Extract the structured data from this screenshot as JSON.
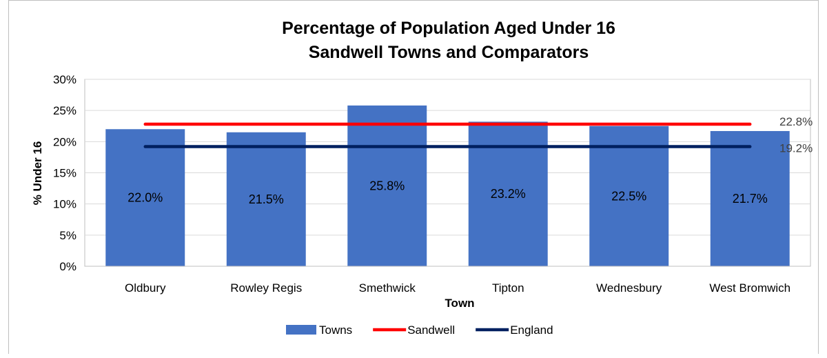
{
  "chart_data": {
    "type": "bar",
    "title": [
      "Percentage of Population Aged Under 16",
      "Sandwell Towns and Comparators"
    ],
    "xlabel": "Town",
    "ylabel": "% Under 16",
    "ylim": [
      0,
      30
    ],
    "yticks": [
      "0%",
      "5%",
      "10%",
      "15%",
      "20%",
      "25%",
      "30%"
    ],
    "ytick_values": [
      0,
      5,
      10,
      15,
      20,
      25,
      30
    ],
    "grid": true,
    "legend_position": "bottom",
    "categories": [
      "Oldbury",
      "Rowley Regis",
      "Smethwick",
      "Tipton",
      "Wednesbury",
      "West Bromwich"
    ],
    "series": [
      {
        "name": "Towns",
        "type": "bar",
        "color": "#4472C4",
        "values": [
          22.0,
          21.5,
          25.8,
          23.2,
          22.5,
          21.7
        ],
        "labels": [
          "22.0%",
          "21.5%",
          "25.8%",
          "23.2%",
          "22.5%",
          "21.7%"
        ]
      },
      {
        "name": "Sandwell",
        "type": "line",
        "color": "#FF0000",
        "value": 22.8,
        "label": "22.8%"
      },
      {
        "name": "England",
        "type": "line",
        "color": "#002060",
        "value": 19.2,
        "label": "19.2%"
      }
    ]
  }
}
